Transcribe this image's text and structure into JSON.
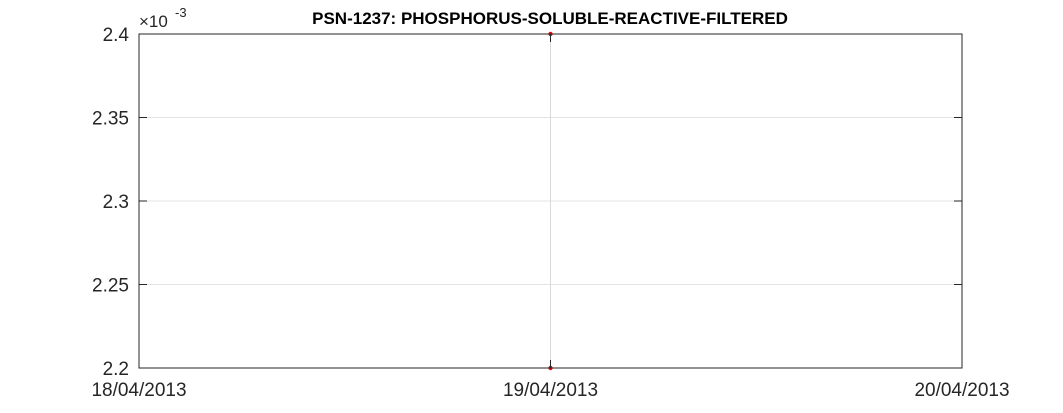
{
  "chart_data": {
    "type": "line",
    "title": "PSN-1237: PHOSPHORUS-SOLUBLE-REACTIVE-FILTERED",
    "xlabel": "",
    "ylabel": "",
    "x_ticks": [
      "18/04/2013",
      "19/04/2013",
      "20/04/2013"
    ],
    "xlim": [
      "18/04/2013",
      "20/04/2013"
    ],
    "y_multiplier": {
      "base": "×10",
      "exponent": "-3"
    },
    "y_ticks": [
      "2.2",
      "2.25",
      "2.3",
      "2.35",
      "2.4"
    ],
    "ylim": [
      0.0022,
      0.0024
    ],
    "grid": true,
    "legend": "none",
    "series": [
      {
        "x": [
          "19/04/2013",
          "19/04/2013"
        ],
        "y": [
          0.0024,
          0.0022
        ],
        "line_color": "#d9d9d9",
        "marker_color": "#ff0000"
      }
    ]
  }
}
